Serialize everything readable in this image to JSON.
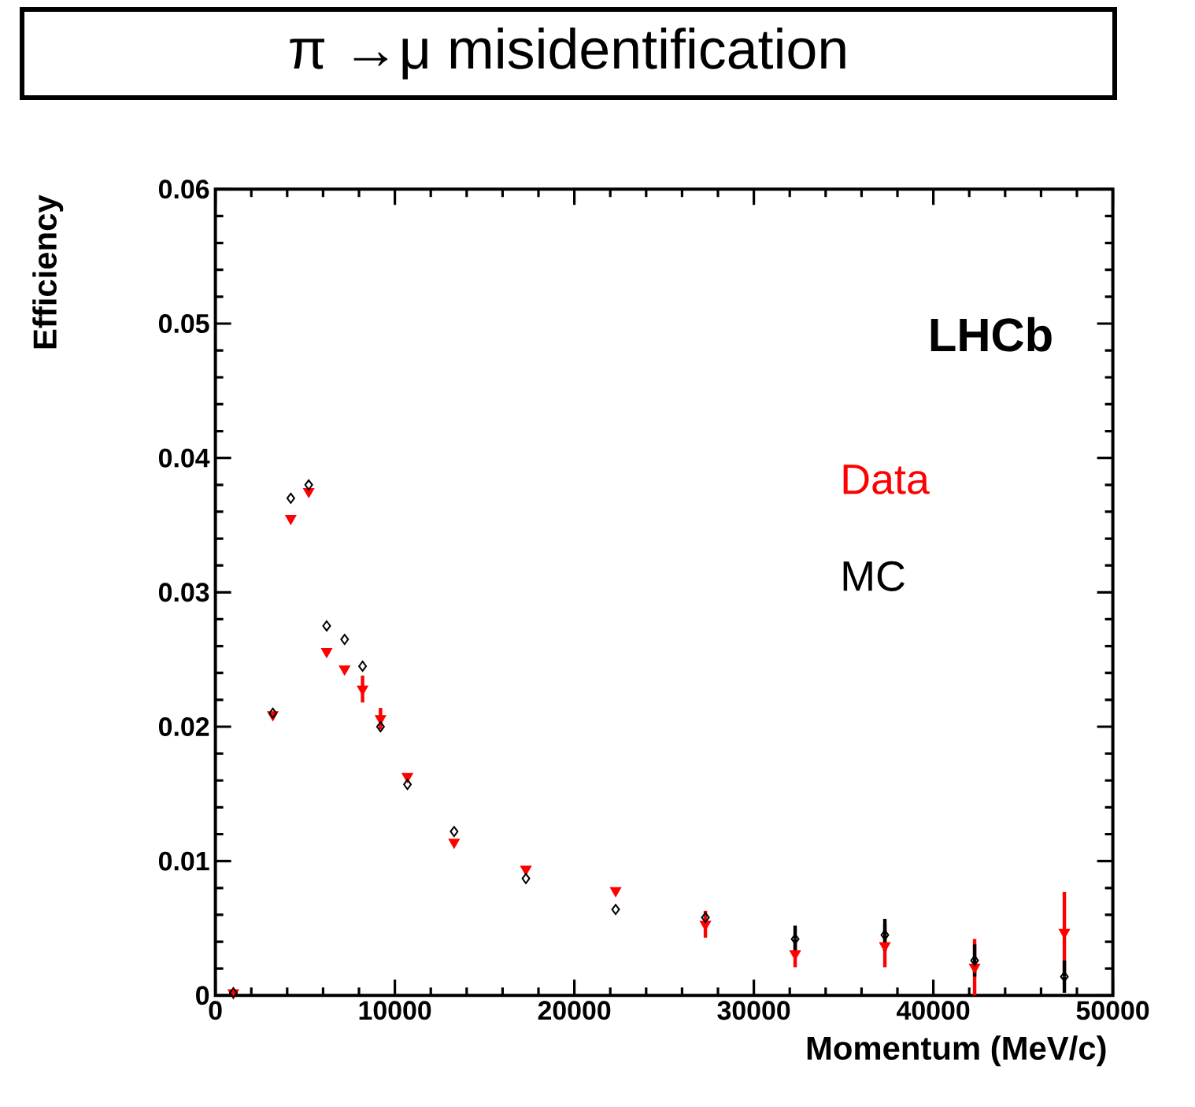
{
  "chart_data": {
    "type": "scatter",
    "title": "π →μ misidentification",
    "xlabel": "Momentum (MeV/c)",
    "ylabel": "Efficiency",
    "annotations": [
      "LHCb"
    ],
    "xlim": [
      0,
      50000
    ],
    "xticks": [
      0,
      10000,
      20000,
      30000,
      40000,
      50000
    ],
    "ylim": [
      0,
      0.06
    ],
    "yticks": [
      0,
      0.01,
      0.02,
      0.03,
      0.04,
      0.05,
      0.06
    ],
    "legend": "top right",
    "grid": false,
    "x": [
      1000,
      3200,
      4200,
      5200,
      6200,
      7200,
      8200,
      9200,
      10700,
      13300,
      17300,
      22300,
      27300,
      32300,
      37300,
      42300,
      47300
    ],
    "series": [
      {
        "name": "Data",
        "color": "#ff0000",
        "marker": "triangle",
        "values": [
          0.0002,
          0.0209,
          0.0355,
          0.0375,
          0.0256,
          0.0243,
          0.0228,
          0.0206,
          0.0163,
          0.0114,
          0.0094,
          0.0078,
          0.0053,
          0.0031,
          0.0037,
          0.0021,
          0.0047
        ],
        "errors": [
          null,
          null,
          null,
          null,
          null,
          null,
          0.001,
          0.0008,
          null,
          null,
          null,
          null,
          0.001,
          0.001,
          0.0016,
          0.0021,
          0.003
        ]
      },
      {
        "name": "MC",
        "color": "#000000",
        "marker": "diamond",
        "values": [
          0.0002,
          0.021,
          0.037,
          0.038,
          0.0275,
          0.0265,
          0.0245,
          0.02,
          0.0157,
          0.0122,
          0.0087,
          0.0064,
          0.0058,
          0.0042,
          0.0045,
          0.0026,
          0.0014
        ],
        "errors": [
          null,
          null,
          null,
          null,
          null,
          null,
          null,
          null,
          null,
          null,
          null,
          null,
          null,
          0.001,
          0.0012,
          0.0012,
          0.0012
        ]
      }
    ]
  }
}
